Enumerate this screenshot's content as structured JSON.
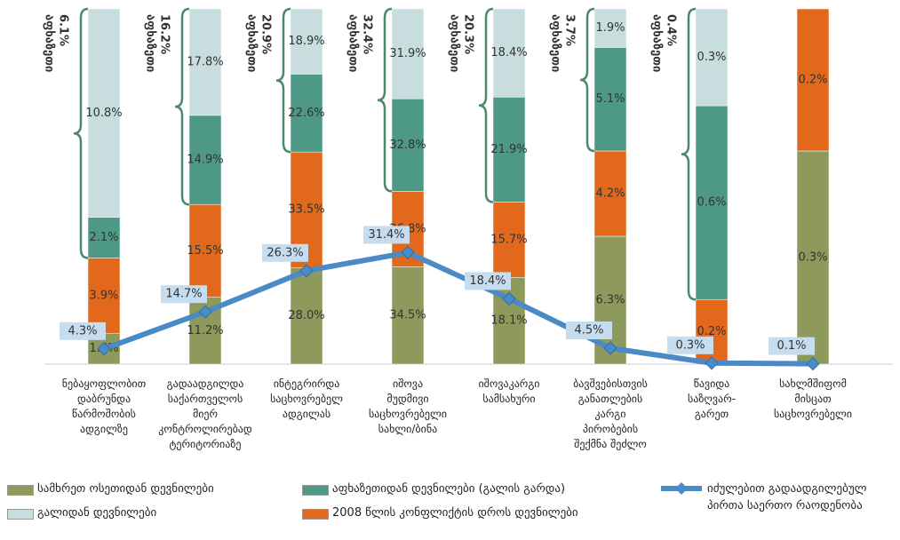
{
  "chart_data": {
    "type": "bar",
    "stacked": "percent",
    "categories": [
      "ნებაყოფლობით\nდაბრუნდა\nწარმოშობის\nადგილზე",
      "გადაადგილდა\nსაქართველოს\nმიერ\nკონტროლირებად\nტერიტორიაზე",
      "ინტეგრირდა\nსაცხოვრებელ\nადგილას",
      "იშოვა\nმუდმივი\nსაცხოვრებელი\nსახლი/ბინა",
      "იშოვაკარგი\nსამსახური",
      "ბავშვებისთვის\nგანათლების\nკარგი\nპირობების\nშექმნა შეძლო",
      "წავიდა\nსაზღვარ-\nგარეთ",
      "სახლმშიფომ\nმისცათ\nსაცხოვრებელი"
    ],
    "series": [
      {
        "name": "სამხრეთ ოსეთიდან დევნილები",
        "color": "#8d9a5c",
        "values": [
          1.6,
          11.2,
          28.0,
          34.5,
          18.1,
          6.3,
          null,
          0.3
        ],
        "value_labels": [
          "1.6%",
          "11.2%",
          "28.0%",
          "34.5%",
          "18.1%",
          "6.3%",
          null,
          "0.3%"
        ]
      },
      {
        "name": "2008 წლის კონფლიქტის დროს დევნილები",
        "color": "#e2691b",
        "values": [
          3.9,
          15.5,
          33.5,
          26.8,
          15.7,
          4.2,
          0.2,
          0.2
        ],
        "value_labels": [
          "3.9%",
          "15.5%",
          "33.5%",
          "26.8%",
          "15.7%",
          "4.2%",
          "0.2%",
          "0.2%"
        ]
      },
      {
        "name": "აფხაზეთიდან დევნილები (გალის გარდა)",
        "color": "#4e9886",
        "values": [
          2.1,
          14.9,
          22.6,
          32.8,
          21.9,
          5.1,
          0.6,
          null
        ],
        "value_labels": [
          "2.1%",
          "14.9%",
          "22.6%",
          "32.8%",
          "21.9%",
          "5.1%",
          "0.6%",
          null
        ]
      },
      {
        "name": "გალიდან დევნილები",
        "color": "#c8dede",
        "values": [
          10.8,
          17.8,
          18.9,
          31.9,
          18.4,
          1.9,
          0.3,
          null
        ],
        "value_labels": [
          "10.8%",
          "17.8%",
          "18.9%",
          "31.9%",
          "18.4%",
          "1.9%",
          "0.3%",
          null
        ]
      },
      {
        "name": "იძულებით გადაადგილებულ პირთა საერთო რაოდენობა",
        "type": "line",
        "color": "#4a8bc6",
        "values": [
          4.3,
          14.7,
          26.3,
          31.4,
          18.4,
          4.5,
          0.3,
          0.1
        ],
        "value_labels": [
          "4.3%",
          "14.7%",
          "26.3%",
          "31.4%",
          "18.4%",
          "4.5%",
          "0.3%",
          "0.1%"
        ]
      }
    ],
    "ylim": [
      0,
      100
    ],
    "braces": [
      {
        "title": "აფხაზეთი",
        "label": "6.1%"
      },
      {
        "title": "აფხაზეთი",
        "label": "16.2%"
      },
      {
        "title": "აფხაზეთი",
        "label": "20.9%"
      },
      {
        "title": "აფხაზეთი",
        "label": "32.4%"
      },
      {
        "title": "აფხაზეთი",
        "label": "20.3%"
      },
      {
        "title": "აფხაზეთი",
        "label": "3.7%"
      },
      {
        "title": "აფხაზეთი",
        "label": "0.4%"
      }
    ]
  }
}
